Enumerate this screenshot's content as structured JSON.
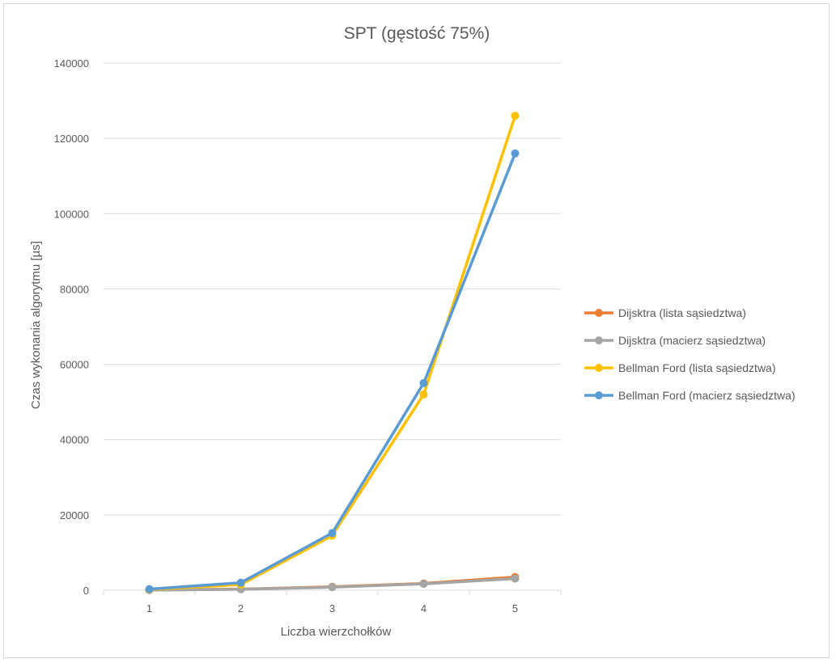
{
  "chart_data": {
    "type": "line",
    "title": "SPT (gęstość 75%)",
    "xlabel": "Liczba wierzchołków",
    "ylabel": "Czas wykonania algorytmu [µs]",
    "categories": [
      "1",
      "2",
      "3",
      "4",
      "5"
    ],
    "yticks": [
      "0",
      "20000",
      "40000",
      "60000",
      "80000",
      "100000",
      "120000",
      "140000"
    ],
    "ylim": [
      0,
      140000
    ],
    "grid": true,
    "legend_position": "right",
    "series": [
      {
        "name": "Dijsktra (lista sąsiedztwa)",
        "color": "#ED7D31",
        "values": [
          50,
          300,
          900,
          1800,
          3500
        ]
      },
      {
        "name": "Dijsktra (macierz sąsiedztwa)",
        "color": "#A5A5A5",
        "values": [
          40,
          250,
          800,
          1700,
          3100
        ]
      },
      {
        "name": "Bellman Ford (lista sąsiedztwa)",
        "color": "#FFC000",
        "values": [
          200,
          1500,
          14500,
          52000,
          126000
        ]
      },
      {
        "name": "Bellman Ford (macierz sąsiedztwa)",
        "color": "#5B9BD5",
        "values": [
          300,
          2000,
          15200,
          55000,
          116000
        ]
      }
    ]
  }
}
